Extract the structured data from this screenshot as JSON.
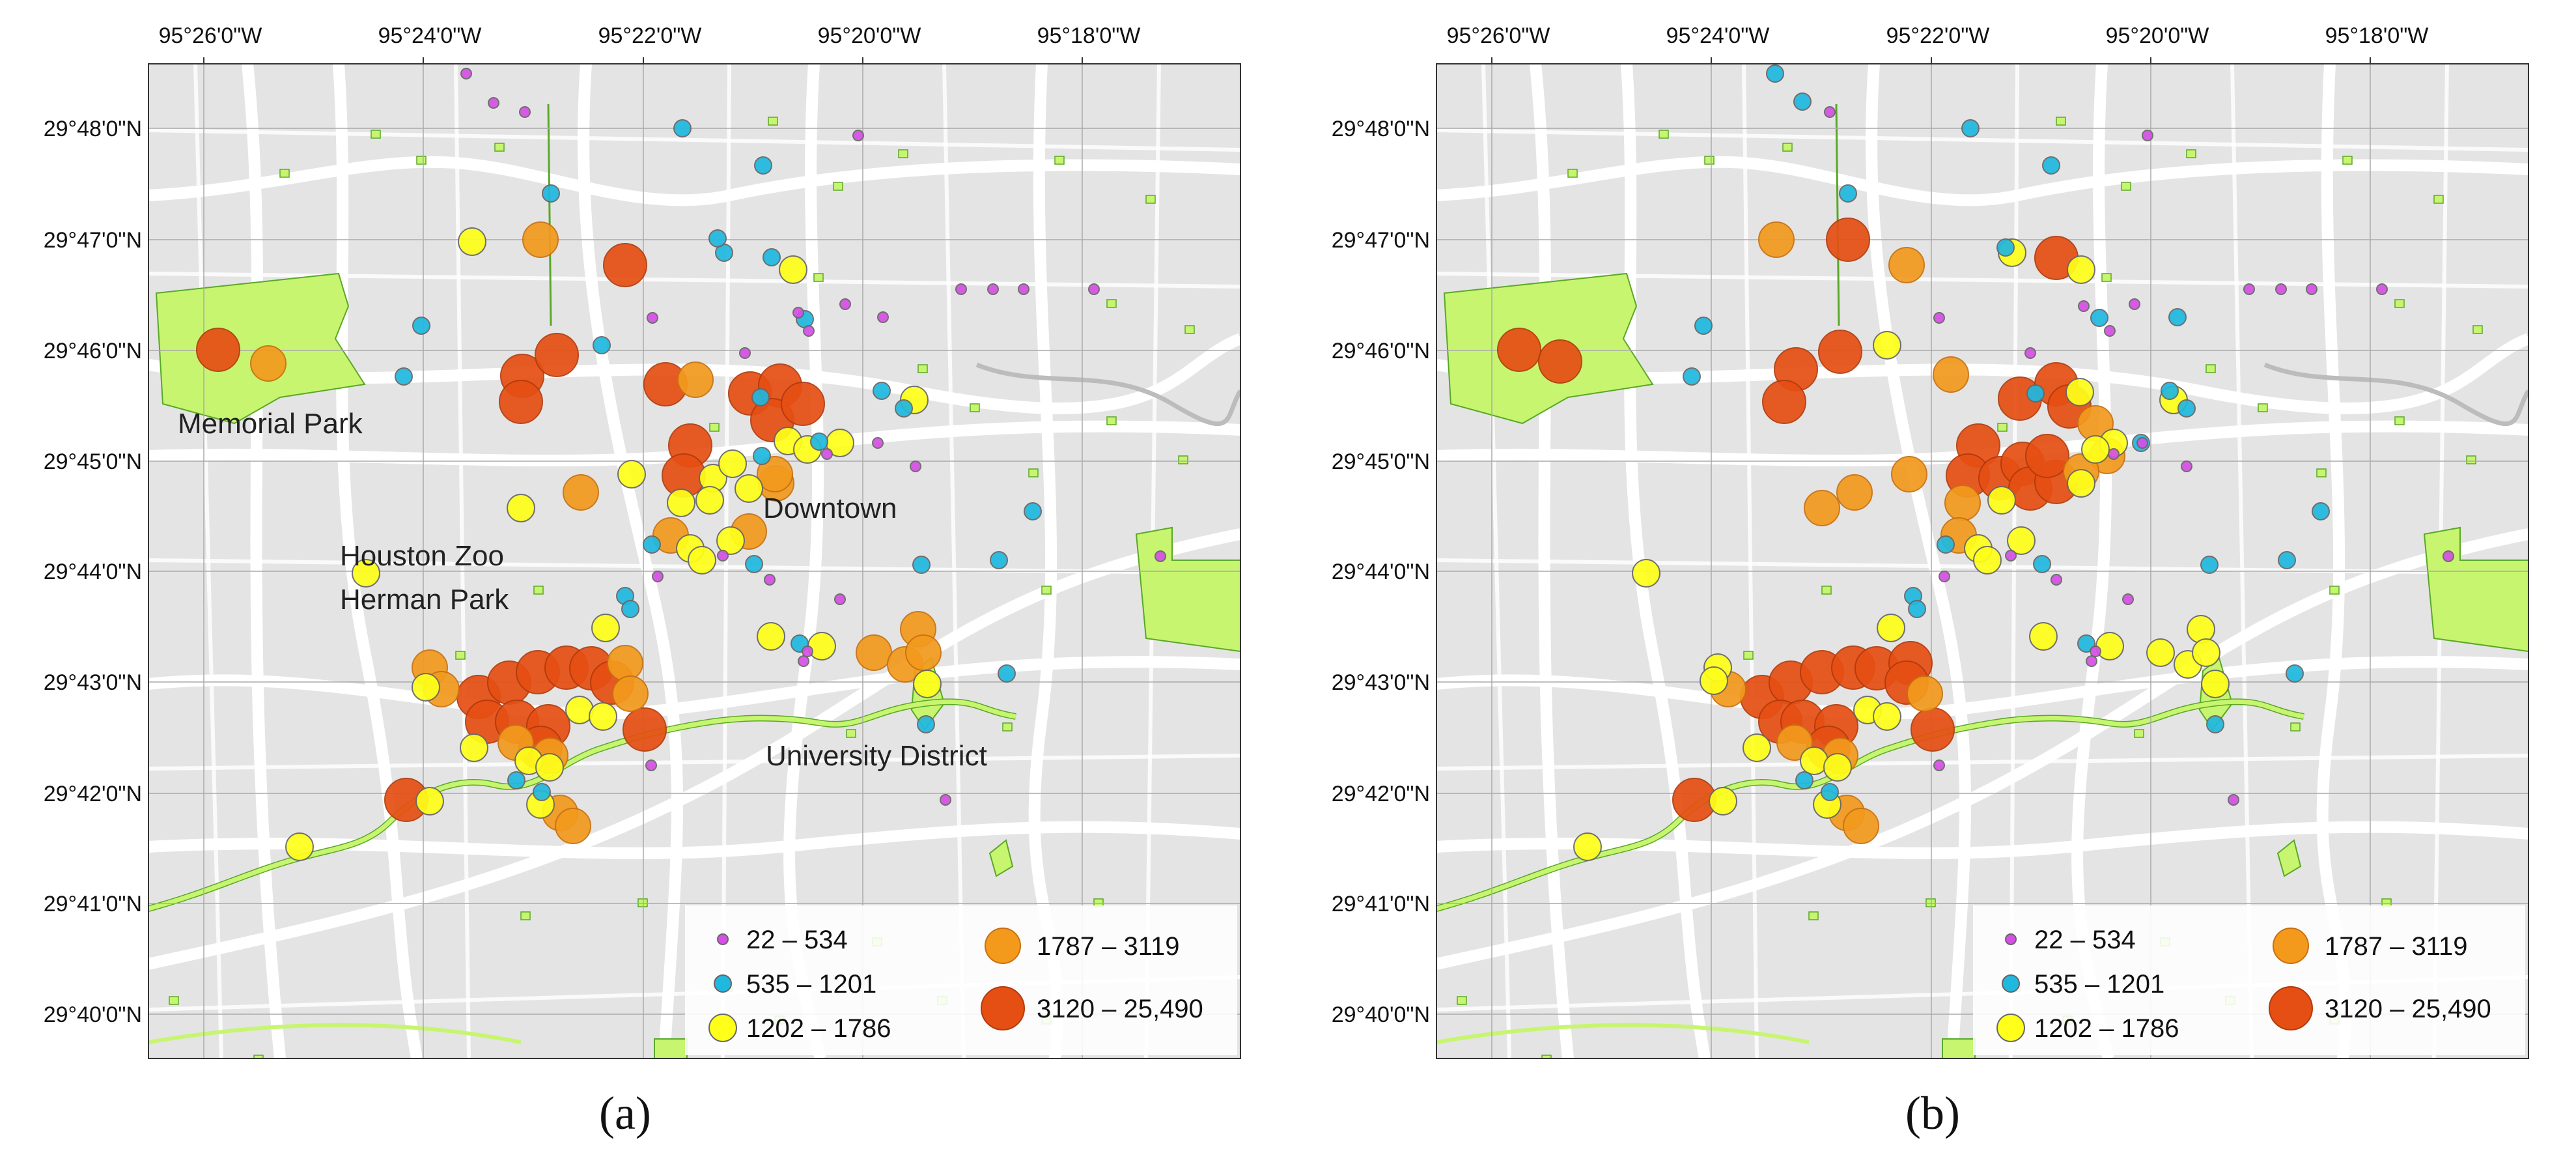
{
  "figure": {
    "panels": [
      {
        "id": "a",
        "caption": "(a)",
        "place_labels": [
          "Memorial Park",
          "Houston Zoo",
          "Herman Park",
          "Downtown",
          "University District"
        ]
      },
      {
        "id": "b",
        "caption": "(b)",
        "place_labels": []
      }
    ],
    "lon_ticks": [
      "95°26'0\"W",
      "95°24'0\"W",
      "95°22'0\"W",
      "95°20'0\"W",
      "95°18'0\"W"
    ],
    "lat_ticks": [
      "29°48'0\"N",
      "29°47'0\"N",
      "29°46'0\"N",
      "29°45'0\"N",
      "29°44'0\"N",
      "29°43'0\"N",
      "29°42'0\"N",
      "29°41'0\"N",
      "29°40'0\"N"
    ],
    "legend": [
      {
        "label": "22 – 534",
        "color": "#d64fe6",
        "class": 1
      },
      {
        "label": "535 – 1201",
        "color": "#1fb8e0",
        "class": 2
      },
      {
        "label": "1202 – 1786",
        "color": "#ffff1a",
        "class": 3
      },
      {
        "label": "1787 – 3119",
        "color": "#f39a1d",
        "class": 4
      },
      {
        "label": "3120 – 25,490",
        "color": "#e64f13",
        "class": 5
      }
    ],
    "colors": {
      "land": "#e4e4e4",
      "road": "#ffffff",
      "park": "#c7f570",
      "park_edge": "#5aa828",
      "grid": "#aaaaaa",
      "river": "#bcbcbc"
    }
  }
}
